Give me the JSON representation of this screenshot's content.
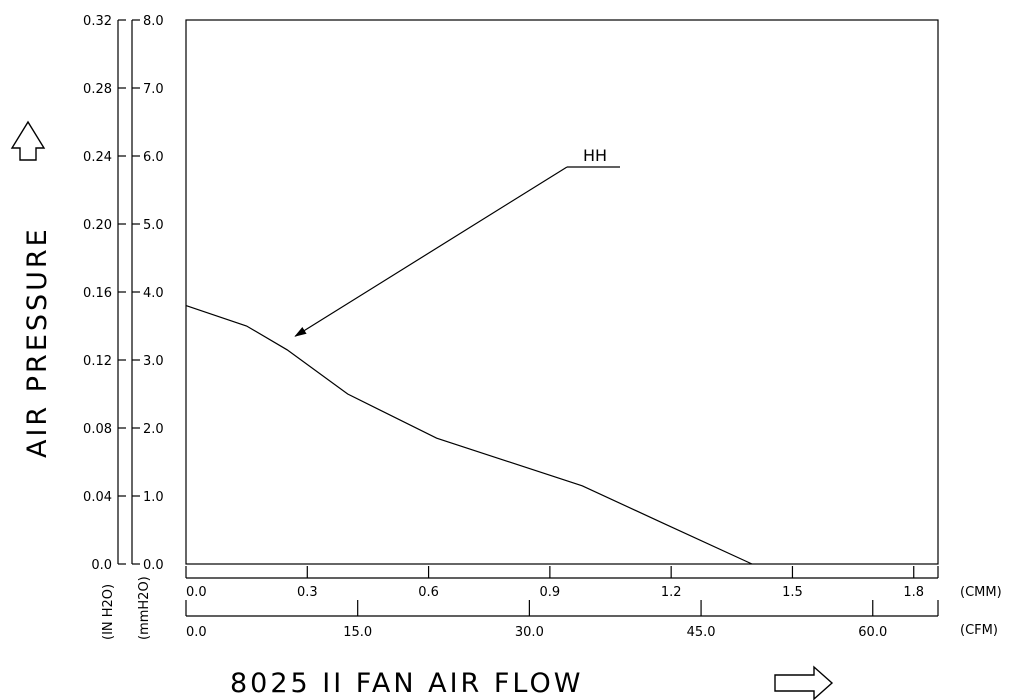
{
  "chart_data": {
    "type": "line",
    "title": "8025 II FAN AIR FLOW",
    "ylabel": "AIR PRESSURE",
    "x_axes": [
      {
        "unit": "(CMM)",
        "ticks": [
          "0.0",
          "0.3",
          "0.6",
          "0.9",
          "1.2",
          "1.5",
          "1.8"
        ],
        "range": [
          0,
          1.86
        ]
      },
      {
        "unit": "(CFM)",
        "ticks": [
          "0.0",
          "15.0",
          "30.0",
          "45.0",
          "60.0"
        ],
        "range": [
          0,
          65.7
        ]
      }
    ],
    "y_axes": [
      {
        "unit": "(IN H2O)",
        "ticks": [
          "0.0",
          "0.04",
          "0.08",
          "0.12",
          "0.16",
          "0.20",
          "0.24",
          "0.28",
          "0.32"
        ],
        "range": [
          0,
          0.32
        ]
      },
      {
        "unit": "(mmH2O)",
        "ticks": [
          "0.0",
          "1.0",
          "2.0",
          "3.0",
          "4.0",
          "5.0",
          "6.0",
          "7.0",
          "8.0"
        ],
        "range": [
          0,
          8.0
        ]
      }
    ],
    "series": [
      {
        "name": "HH",
        "x_unit": "CMM",
        "y_unit": "mmH2O",
        "x": [
          0.0,
          0.15,
          0.25,
          0.4,
          0.62,
          0.98,
          1.18,
          1.4
        ],
        "y": [
          3.8,
          3.5,
          3.15,
          2.5,
          1.85,
          1.15,
          0.6,
          0.0
        ]
      }
    ],
    "annotation": {
      "text": "HH",
      "points_to": {
        "x": 0.27,
        "y": 3.35
      }
    },
    "grid": false
  }
}
